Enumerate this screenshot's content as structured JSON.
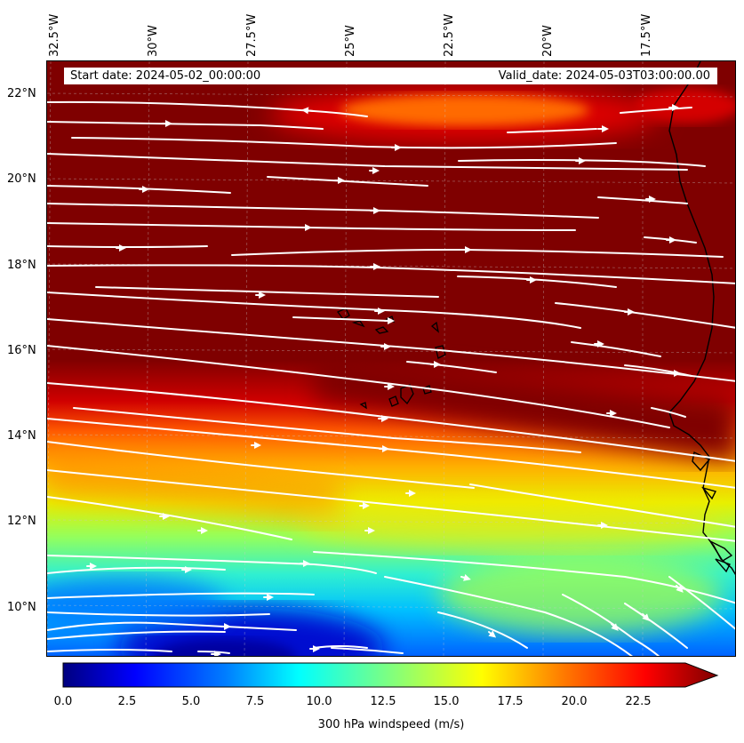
{
  "header": {
    "start_date": "Start date: 2024-05-02_00:00:00",
    "valid_date": "Valid_date: 2024-05-03T03:00:00.00"
  },
  "axes": {
    "lon_labels": [
      "32.5°W",
      "30°W",
      "27.5°W",
      "25°W",
      "22.5°W",
      "20°W",
      "17.5°W"
    ],
    "lat_labels": [
      "22°N",
      "20°N",
      "18°N",
      "16°N",
      "14°N",
      "12°N",
      "10°N"
    ]
  },
  "colorbar": {
    "label": "300 hPa windspeed (m/s)",
    "ticks": [
      "0.0",
      "2.5",
      "5.0",
      "7.5",
      "10.0",
      "12.5",
      "15.0",
      "17.5",
      "20.0",
      "22.5"
    ],
    "min": 0,
    "max": 25,
    "extend": "max",
    "colors": [
      "#00007f",
      "#0000ff",
      "#007fff",
      "#00ffff",
      "#7fff7f",
      "#ffff00",
      "#ff7f00",
      "#ff0000",
      "#7f0000"
    ]
  },
  "field": {
    "variable": "300 hPa windspeed",
    "units": "m/s",
    "region": "Eastern tropical North Atlantic, Cape Verde and West African coast",
    "lon_range": [
      -33,
      -15.5
    ],
    "lat_range": [
      8.8,
      22.8
    ]
  }
}
